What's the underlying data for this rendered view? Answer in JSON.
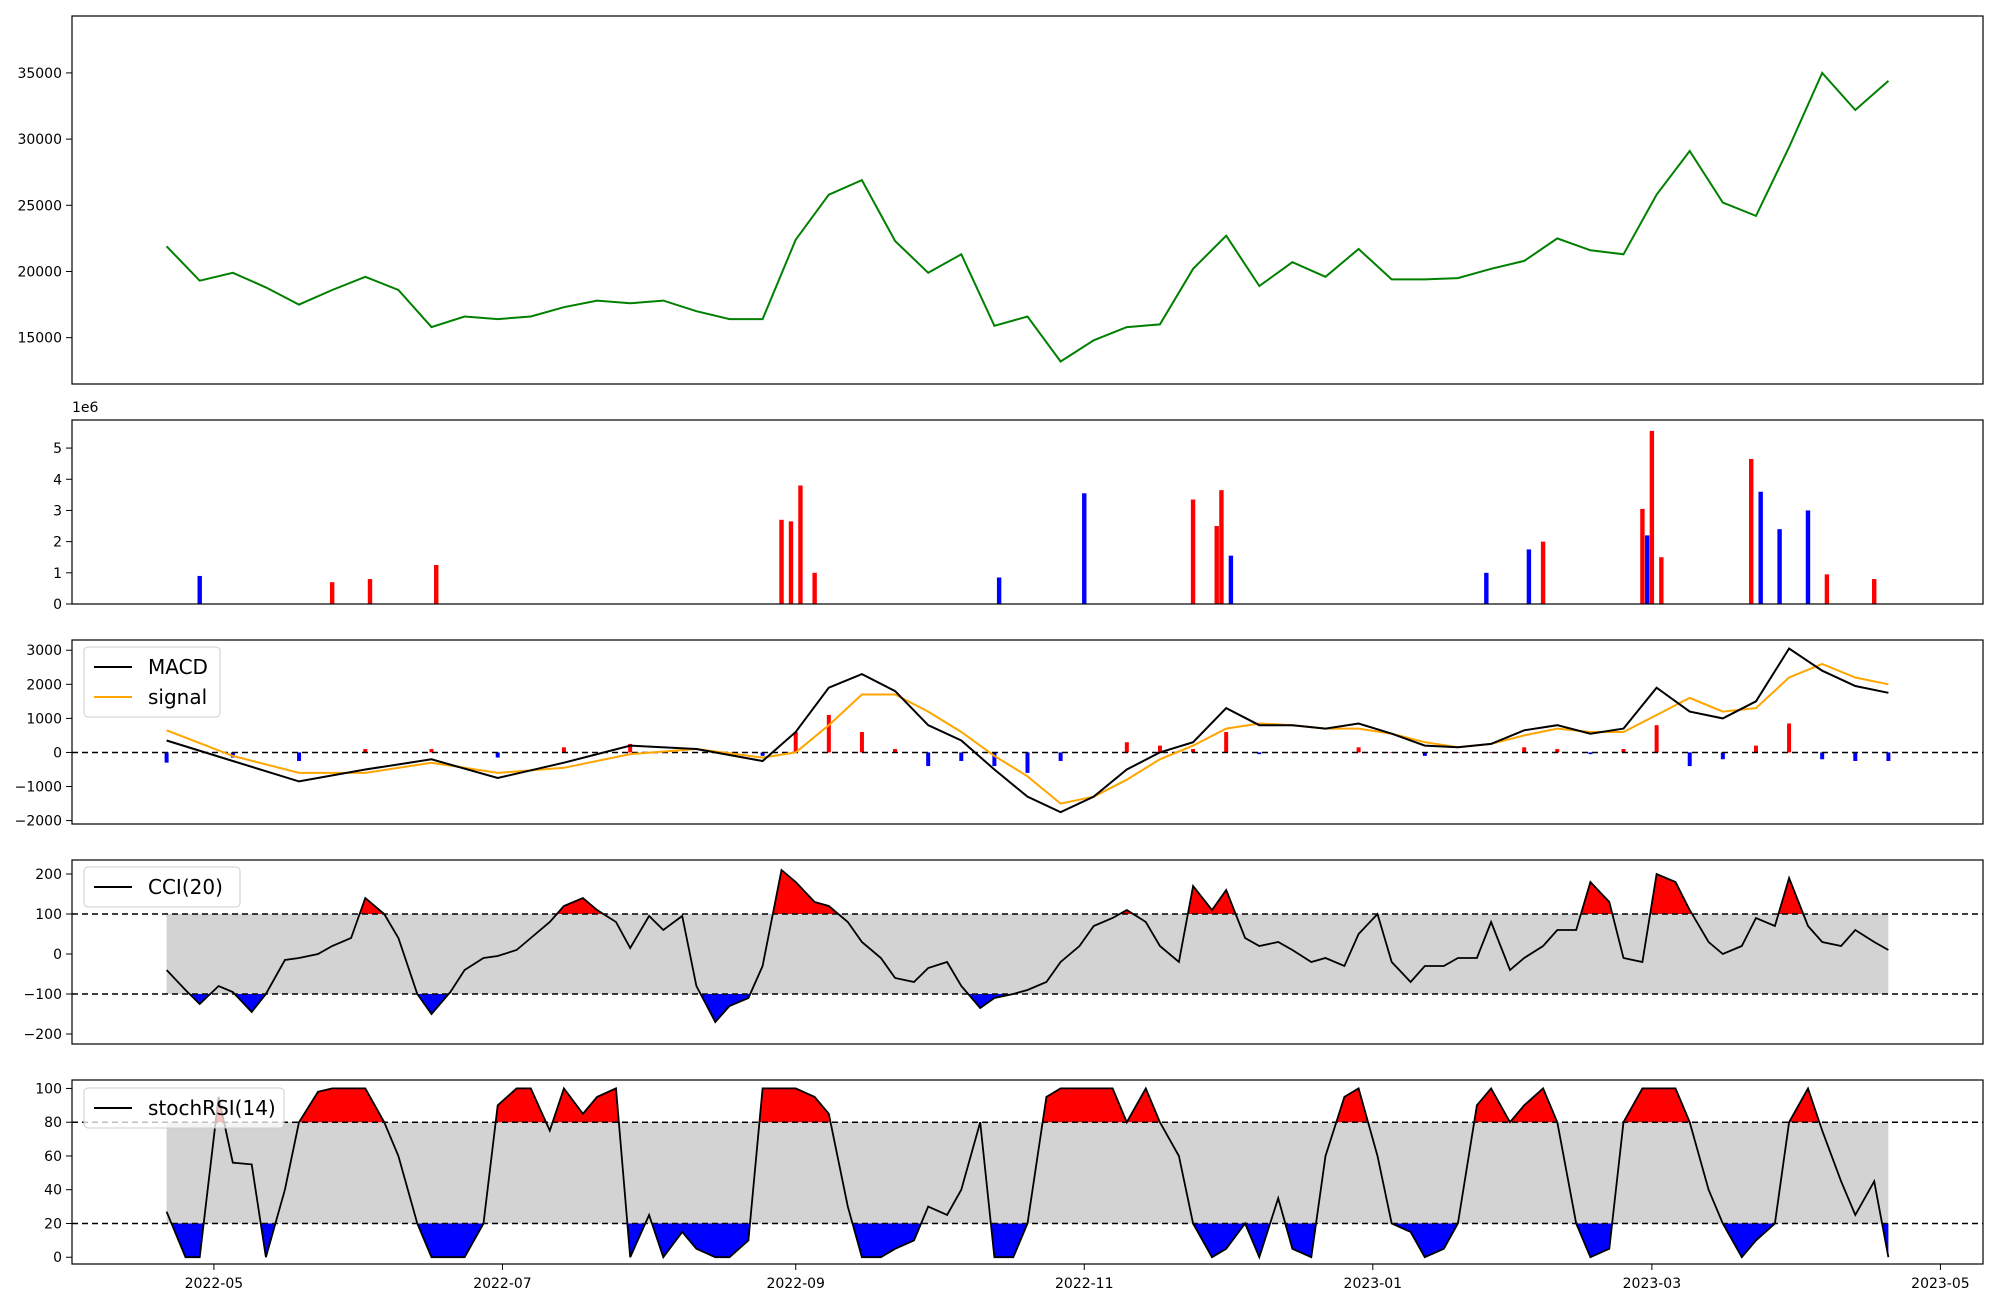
{
  "chart_data": [
    {
      "panel": "price",
      "type": "line",
      "ylim": [
        11500,
        39300
      ],
      "yticks": [
        15000,
        20000,
        25000,
        30000,
        35000
      ],
      "ytick_labels": [
        "15000",
        "20000",
        "25000",
        "30000",
        "35000"
      ],
      "colors": {
        "line": "#008000"
      },
      "series": [
        {
          "x": [
            "2022-04-21",
            "2022-04-28",
            "2022-05-05",
            "2022-05-12",
            "2022-05-19",
            "2022-05-26",
            "2022-06-02",
            "2022-06-09",
            "2022-06-16",
            "2022-06-23",
            "2022-06-30",
            "2022-07-07",
            "2022-07-14",
            "2022-07-21",
            "2022-07-28",
            "2022-08-04",
            "2022-08-11",
            "2022-08-18",
            "2022-08-25",
            "2022-09-01",
            "2022-09-08",
            "2022-09-15",
            "2022-09-22",
            "2022-09-29",
            "2022-10-06",
            "2022-10-13",
            "2022-10-20",
            "2022-10-27",
            "2022-11-03",
            "2022-11-10",
            "2022-11-17",
            "2022-11-24",
            "2022-12-01",
            "2022-12-08",
            "2022-12-15",
            "2022-12-22",
            "2022-12-29",
            "2023-01-05",
            "2023-01-12",
            "2023-01-19",
            "2023-01-26",
            "2023-02-02",
            "2023-02-09",
            "2023-02-16",
            "2023-02-23",
            "2023-03-02",
            "2023-03-09",
            "2023-03-16",
            "2023-03-23",
            "2023-03-30",
            "2023-04-06",
            "2023-04-13",
            "2023-04-20"
          ],
          "y": [
            21900,
            19300,
            19900,
            18800,
            17500,
            18600,
            19600,
            18600,
            15800,
            16600,
            16400,
            16600,
            17300,
            17800,
            17600,
            17800,
            17000,
            16400,
            16400,
            22400,
            25800,
            26900,
            22300,
            19900,
            21300,
            15900,
            16600,
            13200,
            14800,
            15800,
            16000,
            20200,
            22700,
            18900,
            20700,
            19600,
            21700,
            19400,
            19400,
            19500,
            20200,
            20800,
            22500,
            21600,
            21300,
            25800,
            29100,
            25200,
            24200,
            29400,
            35000,
            32200,
            34400
          ]
        }
      ]
    },
    {
      "panel": "volume",
      "type": "bar",
      "ylim": [
        0,
        5900000
      ],
      "yticks": [
        0,
        1000000,
        2000000,
        3000000,
        4000000,
        5000000
      ],
      "ytick_labels": [
        "0",
        "1",
        "2",
        "3",
        "4",
        "5"
      ],
      "scale_label": "1e6",
      "colors": {
        "up": "#ff0000",
        "down": "#0000ff"
      },
      "bars": [
        {
          "x": "2022-04-28",
          "value": 900000,
          "dir": "down"
        },
        {
          "x": "2022-05-26",
          "value": 700000,
          "dir": "up"
        },
        {
          "x": "2022-06-03",
          "value": 800000,
          "dir": "up"
        },
        {
          "x": "2022-06-17",
          "value": 1250000,
          "dir": "up"
        },
        {
          "x": "2022-08-29",
          "value": 2700000,
          "dir": "up"
        },
        {
          "x": "2022-08-31",
          "value": 2650000,
          "dir": "up"
        },
        {
          "x": "2022-09-02",
          "value": 3800000,
          "dir": "up"
        },
        {
          "x": "2022-09-05",
          "value": 1000000,
          "dir": "up"
        },
        {
          "x": "2022-10-14",
          "value": 850000,
          "dir": "down"
        },
        {
          "x": "2022-11-01",
          "value": 3550000,
          "dir": "down"
        },
        {
          "x": "2022-11-24",
          "value": 3350000,
          "dir": "up"
        },
        {
          "x": "2022-11-29",
          "value": 2500000,
          "dir": "up"
        },
        {
          "x": "2022-11-30",
          "value": 3650000,
          "dir": "up"
        },
        {
          "x": "2022-12-02",
          "value": 1550000,
          "dir": "down"
        },
        {
          "x": "2023-01-25",
          "value": 1000000,
          "dir": "down"
        },
        {
          "x": "2023-02-03",
          "value": 1750000,
          "dir": "down"
        },
        {
          "x": "2023-02-06",
          "value": 2000000,
          "dir": "up"
        },
        {
          "x": "2023-02-27",
          "value": 3050000,
          "dir": "up"
        },
        {
          "x": "2023-02-28",
          "value": 2200000,
          "dir": "down"
        },
        {
          "x": "2023-03-01",
          "value": 5550000,
          "dir": "up"
        },
        {
          "x": "2023-03-03",
          "value": 1500000,
          "dir": "up"
        },
        {
          "x": "2023-03-22",
          "value": 4650000,
          "dir": "up"
        },
        {
          "x": "2023-03-24",
          "value": 3600000,
          "dir": "down"
        },
        {
          "x": "2023-03-28",
          "value": 2400000,
          "dir": "down"
        },
        {
          "x": "2023-04-03",
          "value": 3000000,
          "dir": "down"
        },
        {
          "x": "2023-04-07",
          "value": 950000,
          "dir": "up"
        },
        {
          "x": "2023-04-17",
          "value": 800000,
          "dir": "up"
        }
      ]
    },
    {
      "panel": "macd",
      "type": "line",
      "ylim": [
        -2100,
        3300
      ],
      "yticks": [
        -2000,
        -1000,
        0,
        1000,
        2000,
        3000
      ],
      "ytick_labels": [
        "−2000",
        "−1000",
        "0",
        "1000",
        "2000",
        "3000"
      ],
      "legend": "top-left",
      "colors": {
        "macd": "#000000",
        "signal": "#ffa500",
        "hist_pos": "#ff0000",
        "hist_neg": "#0000ff"
      },
      "x": [
        "2022-04-21",
        "2022-05-05",
        "2022-05-19",
        "2022-06-02",
        "2022-06-16",
        "2022-06-30",
        "2022-07-14",
        "2022-07-28",
        "2022-08-11",
        "2022-08-25",
        "2022-09-01",
        "2022-09-08",
        "2022-09-15",
        "2022-09-22",
        "2022-09-29",
        "2022-10-06",
        "2022-10-13",
        "2022-10-20",
        "2022-10-27",
        "2022-11-03",
        "2022-11-10",
        "2022-11-17",
        "2022-11-24",
        "2022-12-01",
        "2022-12-08",
        "2022-12-15",
        "2022-12-22",
        "2022-12-29",
        "2023-01-05",
        "2023-01-12",
        "2023-01-19",
        "2023-01-26",
        "2023-02-02",
        "2023-02-09",
        "2023-02-16",
        "2023-02-23",
        "2023-03-02",
        "2023-03-09",
        "2023-03-16",
        "2023-03-23",
        "2023-03-30",
        "2023-04-06",
        "2023-04-13",
        "2023-04-20"
      ],
      "series": [
        {
          "name": "MACD",
          "values": [
            350,
            -250,
            -850,
            -500,
            -200,
            -750,
            -300,
            200,
            100,
            -250,
            600,
            1900,
            2300,
            1800,
            800,
            350,
            -500,
            -1300,
            -1750,
            -1300,
            -500,
            0,
            300,
            1300,
            800,
            800,
            700,
            850,
            550,
            200,
            150,
            250,
            650,
            800,
            550,
            700,
            1900,
            1200,
            1000,
            1500,
            3050,
            2400,
            1950,
            1750
          ]
        },
        {
          "name": "signal",
          "values": [
            650,
            -100,
            -600,
            -600,
            -300,
            -600,
            -450,
            -50,
            100,
            -150,
            0,
            800,
            1700,
            1700,
            1200,
            600,
            -100,
            -700,
            -1500,
            -1300,
            -800,
            -200,
            200,
            700,
            850,
            800,
            700,
            700,
            550,
            300,
            150,
            250,
            500,
            700,
            600,
            600,
            1100,
            1600,
            1200,
            1300,
            2200,
            2600,
            2200,
            2000
          ]
        },
        {
          "name": "histogram",
          "values": [
            -300,
            -150,
            -250,
            100,
            100,
            -150,
            150,
            250,
            0,
            -100,
            600,
            1100,
            600,
            100,
            -400,
            -250,
            -400,
            -600,
            -250,
            0,
            300,
            200,
            100,
            600,
            -50,
            0,
            0,
            150,
            0,
            -100,
            0,
            0,
            150,
            100,
            -50,
            100,
            800,
            -400,
            -200,
            200,
            850,
            -200,
            -250,
            -250
          ]
        }
      ]
    },
    {
      "panel": "cci",
      "type": "line",
      "ylim": [
        -225,
        235
      ],
      "yticks": [
        -200,
        -100,
        0,
        100,
        200
      ],
      "ytick_labels": [
        "−200",
        "−100",
        "0",
        "100",
        "200"
      ],
      "thresholds": [
        -100,
        100
      ],
      "legend": "top-left",
      "colors": {
        "line": "#000000",
        "over": "#ff0000",
        "under": "#0000ff",
        "band": "#d3d3d3"
      },
      "x": [
        "2022-04-21",
        "2022-04-25",
        "2022-04-28",
        "2022-05-02",
        "2022-05-05",
        "2022-05-09",
        "2022-05-12",
        "2022-05-16",
        "2022-05-19",
        "2022-05-23",
        "2022-05-26",
        "2022-05-30",
        "2022-06-02",
        "2022-06-06",
        "2022-06-09",
        "2022-06-13",
        "2022-06-16",
        "2022-06-20",
        "2022-06-23",
        "2022-06-27",
        "2022-06-30",
        "2022-07-04",
        "2022-07-07",
        "2022-07-11",
        "2022-07-14",
        "2022-07-18",
        "2022-07-21",
        "2022-07-25",
        "2022-07-28",
        "2022-08-01",
        "2022-08-04",
        "2022-08-08",
        "2022-08-11",
        "2022-08-15",
        "2022-08-18",
        "2022-08-22",
        "2022-08-25",
        "2022-08-29",
        "2022-09-01",
        "2022-09-05",
        "2022-09-08",
        "2022-09-12",
        "2022-09-15",
        "2022-09-19",
        "2022-09-22",
        "2022-09-26",
        "2022-09-29",
        "2022-10-03",
        "2022-10-06",
        "2022-10-10",
        "2022-10-13",
        "2022-10-17",
        "2022-10-20",
        "2022-10-24",
        "2022-10-27",
        "2022-10-31",
        "2022-11-03",
        "2022-11-07",
        "2022-11-10",
        "2022-11-14",
        "2022-11-17",
        "2022-11-21",
        "2022-11-24",
        "2022-11-28",
        "2022-12-01",
        "2022-12-05",
        "2022-12-08",
        "2022-12-12",
        "2022-12-15",
        "2022-12-19",
        "2022-12-22",
        "2022-12-26",
        "2022-12-29",
        "2023-01-02",
        "2023-01-05",
        "2023-01-09",
        "2023-01-12",
        "2023-01-16",
        "2023-01-19",
        "2023-01-23",
        "2023-01-26",
        "2023-01-30",
        "2023-02-02",
        "2023-02-06",
        "2023-02-09",
        "2023-02-13",
        "2023-02-16",
        "2023-02-20",
        "2023-02-23",
        "2023-02-27",
        "2023-03-02",
        "2023-03-06",
        "2023-03-09",
        "2023-03-13",
        "2023-03-16",
        "2023-03-20",
        "2023-03-23",
        "2023-03-27",
        "2023-03-30",
        "2023-04-03",
        "2023-04-06",
        "2023-04-10",
        "2023-04-13",
        "2023-04-17",
        "2023-04-20"
      ],
      "values": [
        -40,
        -90,
        -125,
        -80,
        -95,
        -145,
        -100,
        -15,
        -10,
        0,
        20,
        40,
        140,
        100,
        40,
        -100,
        -150,
        -95,
        -40,
        -10,
        -5,
        10,
        40,
        80,
        120,
        140,
        110,
        80,
        15,
        95,
        60,
        95,
        -80,
        -170,
        -130,
        -110,
        -30,
        210,
        180,
        130,
        120,
        80,
        30,
        -10,
        -60,
        -70,
        -35,
        -20,
        -80,
        -135,
        -110,
        -100,
        -90,
        -70,
        -20,
        20,
        70,
        90,
        110,
        80,
        20,
        -20,
        170,
        110,
        160,
        40,
        20,
        30,
        10,
        -20,
        -10,
        -30,
        50,
        100,
        -20,
        -70,
        -30,
        -30,
        -10,
        -10,
        80,
        -40,
        -10,
        20,
        60,
        60,
        180,
        130,
        -10,
        -20,
        200,
        180,
        110,
        30,
        0,
        20,
        90,
        70,
        190,
        70,
        30,
        20,
        60,
        30,
        10
      ]
    },
    {
      "panel": "stochrsi",
      "type": "line",
      "ylim": [
        -4,
        105
      ],
      "yticks": [
        0,
        20,
        40,
        60,
        80,
        100
      ],
      "ytick_labels": [
        "0",
        "20",
        "40",
        "60",
        "80",
        "100"
      ],
      "thresholds": [
        20,
        80
      ],
      "legend": "top-left",
      "colors": {
        "line": "#000000",
        "over": "#ff0000",
        "under": "#0000ff",
        "band": "#d3d3d3"
      },
      "xticks": [
        "2022-05-01",
        "2022-07-01",
        "2022-09-01",
        "2022-11-01",
        "2023-01-01",
        "2023-03-01",
        "2023-05-01"
      ],
      "xtick_labels": [
        "2022-05",
        "2022-07",
        "2022-09",
        "2022-11",
        "2023-01",
        "2023-03",
        "2023-05"
      ],
      "x": [
        "2022-04-21",
        "2022-04-25",
        "2022-04-28",
        "2022-05-02",
        "2022-05-05",
        "2022-05-09",
        "2022-05-12",
        "2022-05-16",
        "2022-05-19",
        "2022-05-23",
        "2022-05-26",
        "2022-05-30",
        "2022-06-02",
        "2022-06-06",
        "2022-06-09",
        "2022-06-13",
        "2022-06-16",
        "2022-06-20",
        "2022-06-23",
        "2022-06-27",
        "2022-06-30",
        "2022-07-04",
        "2022-07-07",
        "2022-07-11",
        "2022-07-14",
        "2022-07-18",
        "2022-07-21",
        "2022-07-25",
        "2022-07-28",
        "2022-08-01",
        "2022-08-04",
        "2022-08-08",
        "2022-08-11",
        "2022-08-15",
        "2022-08-18",
        "2022-08-22",
        "2022-08-25",
        "2022-08-29",
        "2022-09-01",
        "2022-09-05",
        "2022-09-08",
        "2022-09-12",
        "2022-09-15",
        "2022-09-19",
        "2022-09-22",
        "2022-09-26",
        "2022-09-29",
        "2022-10-03",
        "2022-10-06",
        "2022-10-10",
        "2022-10-13",
        "2022-10-17",
        "2022-10-20",
        "2022-10-24",
        "2022-10-27",
        "2022-10-31",
        "2022-11-03",
        "2022-11-07",
        "2022-11-10",
        "2022-11-14",
        "2022-11-17",
        "2022-11-21",
        "2022-11-24",
        "2022-11-28",
        "2022-12-01",
        "2022-12-05",
        "2022-12-08",
        "2022-12-12",
        "2022-12-15",
        "2022-12-19",
        "2022-12-22",
        "2022-12-26",
        "2022-12-29",
        "2023-01-02",
        "2023-01-05",
        "2023-01-09",
        "2023-01-12",
        "2023-01-16",
        "2023-01-19",
        "2023-01-23",
        "2023-01-26",
        "2023-01-30",
        "2023-02-02",
        "2023-02-06",
        "2023-02-09",
        "2023-02-13",
        "2023-02-16",
        "2023-02-20",
        "2023-02-23",
        "2023-02-27",
        "2023-03-02",
        "2023-03-06",
        "2023-03-09",
        "2023-03-13",
        "2023-03-16",
        "2023-03-20",
        "2023-03-23",
        "2023-03-27",
        "2023-03-30",
        "2023-04-03",
        "2023-04-06",
        "2023-04-10",
        "2023-04-13",
        "2023-04-17",
        "2023-04-20"
      ],
      "values": [
        27,
        0,
        0,
        95,
        56,
        55,
        0,
        40,
        80,
        98,
        100,
        100,
        100,
        80,
        60,
        20,
        0,
        0,
        0,
        20,
        90,
        100,
        100,
        75,
        100,
        85,
        95,
        100,
        0,
        25,
        0,
        15,
        5,
        0,
        0,
        10,
        100,
        100,
        100,
        95,
        85,
        30,
        0,
        0,
        5,
        10,
        30,
        25,
        40,
        80,
        0,
        0,
        20,
        95,
        100,
        100,
        100,
        100,
        80,
        100,
        80,
        60,
        20,
        0,
        5,
        20,
        0,
        35,
        5,
        0,
        60,
        95,
        100,
        60,
        20,
        15,
        0,
        5,
        20,
        90,
        100,
        80,
        90,
        100,
        80,
        20,
        0,
        5,
        80,
        100,
        100,
        100,
        80,
        40,
        20,
        0,
        10,
        20,
        80,
        100,
        75,
        45,
        25,
        45,
        0
      ]
    }
  ],
  "legend": {
    "macd": "MACD",
    "signal": "signal",
    "cci": "CCI(20)",
    "stochrsi": "stochRSI(14)"
  }
}
